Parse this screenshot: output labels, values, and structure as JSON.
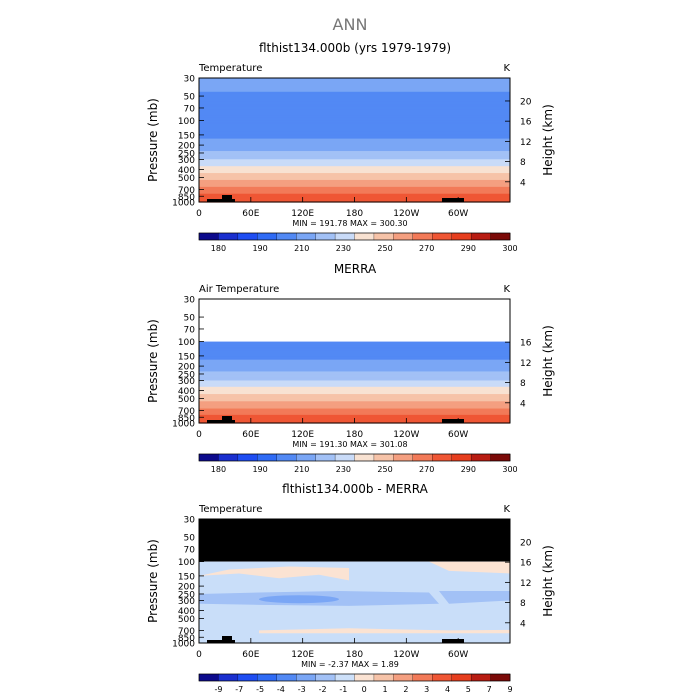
{
  "page_title": "ANN",
  "chart_data": [
    {
      "type": "heatmap",
      "title": "flthist134.000b (yrs 1979-1979)",
      "left_label": "Temperature",
      "units": "K",
      "ylabel": "Pressure (mb)",
      "ylabel_right": "Height (km)",
      "x_ticks": [
        "0",
        "60E",
        "120E",
        "180",
        "120W",
        "60W"
      ],
      "y_ticks": [
        "30",
        "50",
        "70",
        "100",
        "150",
        "200",
        "250",
        "300",
        "400",
        "500",
        "700",
        "850",
        "1000"
      ],
      "height_ticks": [
        "4",
        "8",
        "12",
        "16",
        "20"
      ],
      "stats": "MIN = 191.78   MAX = 300.30",
      "colorbar_ticks": [
        "180",
        "190",
        "210",
        "230",
        "250",
        "270",
        "290",
        "300"
      ],
      "profile": [
        [
          30,
          214
        ],
        [
          50,
          209
        ],
        [
          70,
          205
        ],
        [
          100,
          200
        ],
        [
          150,
          207
        ],
        [
          200,
          215
        ],
        [
          250,
          222
        ],
        [
          300,
          230
        ],
        [
          400,
          245
        ],
        [
          500,
          256
        ],
        [
          700,
          273
        ],
        [
          850,
          283
        ],
        [
          1000,
          289
        ]
      ]
    },
    {
      "type": "heatmap",
      "title": "MERRA",
      "left_label": "Air Temperature",
      "units": "K",
      "ylabel": "Pressure (mb)",
      "ylabel_right": "Height (km)",
      "x_ticks": [
        "0",
        "60E",
        "120E",
        "180",
        "120W",
        "60W"
      ],
      "y_ticks": [
        "30",
        "50",
        "70",
        "100",
        "150",
        "200",
        "250",
        "300",
        "400",
        "500",
        "700",
        "850",
        "1000"
      ],
      "height_ticks": [
        "4",
        "8",
        "12",
        "16"
      ],
      "stats": "MIN = 191.30   MAX = 301.08",
      "colorbar_ticks": [
        "180",
        "190",
        "210",
        "230",
        "250",
        "270",
        "290",
        "300"
      ],
      "profile": [
        [
          100,
          200
        ],
        [
          150,
          207
        ],
        [
          200,
          215
        ],
        [
          250,
          222
        ],
        [
          300,
          230
        ],
        [
          400,
          245
        ],
        [
          500,
          256
        ],
        [
          700,
          273
        ],
        [
          850,
          283
        ],
        [
          1000,
          289
        ]
      ]
    },
    {
      "type": "heatmap",
      "title": "flthist134.000b - MERRA",
      "left_label": "Temperature",
      "units": "K",
      "ylabel": "Pressure (mb)",
      "ylabel_right": "Height (km)",
      "x_ticks": [
        "0",
        "60E",
        "120E",
        "180",
        "120W",
        "60W"
      ],
      "y_ticks": [
        "30",
        "50",
        "70",
        "100",
        "150",
        "200",
        "250",
        "300",
        "400",
        "500",
        "700",
        "850",
        "1000"
      ],
      "height_ticks": [
        "4",
        "8",
        "12",
        "16",
        "20"
      ],
      "stats": "MIN = -2.37   MAX = 1.89",
      "colorbar_ticks": [
        "-9",
        "-7",
        "-5",
        "-4",
        "-3",
        "-2",
        "-1",
        "0",
        "1",
        "2",
        "3",
        "4",
        "5",
        "7",
        "9"
      ],
      "missing_above_mb": 100
    }
  ],
  "colors": {
    "temp_scale": [
      "#0c0a8c",
      "#1a2fcf",
      "#1e4df2",
      "#2f6bf5",
      "#5289f4",
      "#7aa6f5",
      "#a2c1f6",
      "#c9dbf8",
      "#f8e2d2",
      "#f6c3a8",
      "#f49f80",
      "#f27a58",
      "#ef5634",
      "#e63e1e",
      "#b81c12",
      "#7b0a08"
    ],
    "diff_scale": [
      "#0c0a8c",
      "#1a2fcf",
      "#1e4df2",
      "#2f6bf5",
      "#5289f4",
      "#7aa6f5",
      "#a2c1f6",
      "#cde0f9",
      "#fbe3d3",
      "#f6c3a8",
      "#f49f80",
      "#f27a58",
      "#ef5634",
      "#e63e1e",
      "#b81c12",
      "#7b0a08"
    ],
    "missing": "#000000"
  }
}
